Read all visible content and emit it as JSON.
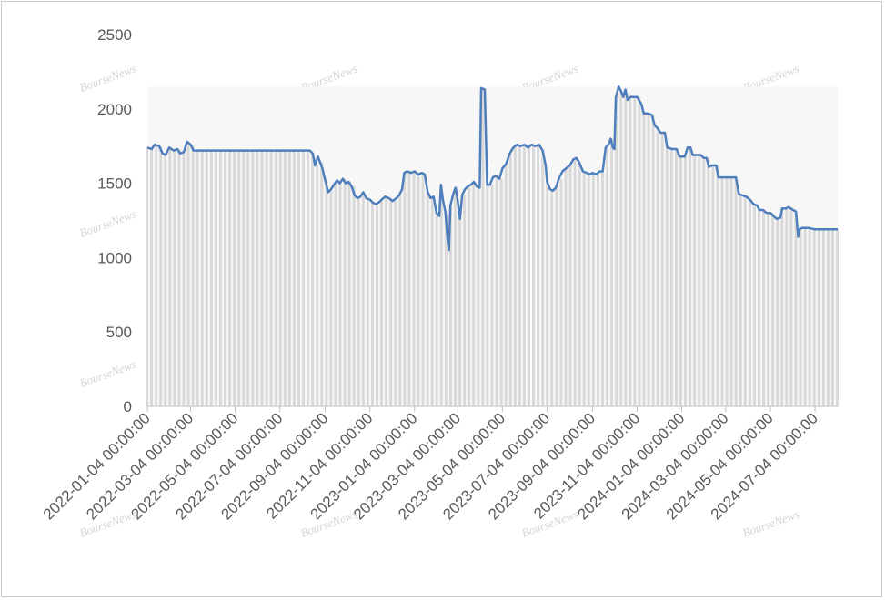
{
  "watermark": "BourseNews",
  "colors": {
    "line": "#4e7ebb",
    "bars": "#d9d9d9",
    "axis": "#bfbfbf",
    "text": "#595959"
  },
  "chart_data": {
    "type": "line",
    "title": "",
    "xlabel": "",
    "ylabel": "",
    "ylim": [
      0,
      2500
    ],
    "yticks": [
      0,
      500,
      1000,
      1500,
      2000,
      2500
    ],
    "xlim": [
      "2022-01-04",
      "2024-08-04"
    ],
    "xtick_labels": [
      "2022-01-04 00:00:00",
      "2022-03-04 00:00:00",
      "2022-05-04 00:00:00",
      "2022-07-04 00:00:00",
      "2022-09-04 00:00:00",
      "2022-11-04 00:00:00",
      "2023-01-04 00:00:00",
      "2023-03-04 00:00:00",
      "2023-05-04 00:00:00",
      "2023-07-04 00:00:00",
      "2023-09-04 00:00:00",
      "2023-11-04 00:00:00",
      "2024-01-04 00:00:00",
      "2024-03-04 00:00:00",
      "2024-05-04 00:00:00",
      "2024-07-04 00:00:00"
    ],
    "grid": false,
    "legend": "none",
    "series": [
      {
        "style": "line",
        "points": [
          [
            "2022-01-04",
            1740
          ],
          [
            "2022-01-10",
            1730
          ],
          [
            "2022-01-14",
            1760
          ],
          [
            "2022-01-20",
            1750
          ],
          [
            "2022-01-25",
            1700
          ],
          [
            "2022-01-29",
            1690
          ],
          [
            "2022-02-03",
            1740
          ],
          [
            "2022-02-09",
            1720
          ],
          [
            "2022-02-14",
            1730
          ],
          [
            "2022-02-18",
            1700
          ],
          [
            "2022-02-23",
            1710
          ],
          [
            "2022-02-27",
            1780
          ],
          [
            "2022-03-04",
            1760
          ],
          [
            "2022-03-08",
            1720
          ],
          [
            "2022-04-15",
            1720
          ],
          [
            "2022-06-01",
            1720
          ],
          [
            "2022-07-20",
            1720
          ],
          [
            "2022-08-14",
            1720
          ],
          [
            "2022-08-18",
            1700
          ],
          [
            "2022-08-21",
            1620
          ],
          [
            "2022-08-25",
            1680
          ],
          [
            "2022-08-28",
            1640
          ],
          [
            "2022-08-31",
            1600
          ],
          [
            "2022-09-04",
            1520
          ],
          [
            "2022-09-08",
            1440
          ],
          [
            "2022-09-12",
            1460
          ],
          [
            "2022-09-16",
            1490
          ],
          [
            "2022-09-20",
            1520
          ],
          [
            "2022-09-24",
            1500
          ],
          [
            "2022-09-28",
            1530
          ],
          [
            "2022-10-02",
            1500
          ],
          [
            "2022-10-06",
            1510
          ],
          [
            "2022-10-10",
            1480
          ],
          [
            "2022-10-14",
            1420
          ],
          [
            "2022-10-18",
            1400
          ],
          [
            "2022-10-22",
            1410
          ],
          [
            "2022-10-26",
            1440
          ],
          [
            "2022-10-30",
            1400
          ],
          [
            "2022-11-04",
            1390
          ],
          [
            "2022-11-08",
            1370
          ],
          [
            "2022-11-12",
            1360
          ],
          [
            "2022-11-16",
            1370
          ],
          [
            "2022-11-20",
            1390
          ],
          [
            "2022-11-25",
            1410
          ],
          [
            "2022-11-30",
            1400
          ],
          [
            "2022-12-05",
            1380
          ],
          [
            "2022-12-10",
            1400
          ],
          [
            "2022-12-14",
            1420
          ],
          [
            "2022-12-18",
            1460
          ],
          [
            "2022-12-21",
            1570
          ],
          [
            "2022-12-25",
            1580
          ],
          [
            "2022-12-30",
            1570
          ],
          [
            "2023-01-04",
            1580
          ],
          [
            "2023-01-09",
            1560
          ],
          [
            "2023-01-14",
            1570
          ],
          [
            "2023-01-18",
            1560
          ],
          [
            "2023-01-22",
            1440
          ],
          [
            "2023-01-26",
            1400
          ],
          [
            "2023-01-30",
            1410
          ],
          [
            "2023-02-03",
            1300
          ],
          [
            "2023-02-07",
            1280
          ],
          [
            "2023-02-09",
            1490
          ],
          [
            "2023-02-12",
            1380
          ],
          [
            "2023-02-15",
            1310
          ],
          [
            "2023-02-18",
            1130
          ],
          [
            "2023-02-20",
            1050
          ],
          [
            "2023-02-22",
            1350
          ],
          [
            "2023-02-26",
            1430
          ],
          [
            "2023-03-01",
            1470
          ],
          [
            "2023-03-04",
            1380
          ],
          [
            "2023-03-07",
            1260
          ],
          [
            "2023-03-10",
            1420
          ],
          [
            "2023-03-14",
            1460
          ],
          [
            "2023-03-18",
            1480
          ],
          [
            "2023-03-22",
            1490
          ],
          [
            "2023-03-26",
            1510
          ],
          [
            "2023-03-30",
            1480
          ],
          [
            "2023-04-03",
            1470
          ],
          [
            "2023-04-05",
            2140
          ],
          [
            "2023-04-10",
            2130
          ],
          [
            "2023-04-13",
            1490
          ],
          [
            "2023-04-17",
            1490
          ],
          [
            "2023-04-21",
            1540
          ],
          [
            "2023-04-25",
            1550
          ],
          [
            "2023-04-30",
            1530
          ],
          [
            "2023-05-04",
            1600
          ],
          [
            "2023-05-09",
            1630
          ],
          [
            "2023-05-14",
            1700
          ],
          [
            "2023-05-19",
            1740
          ],
          [
            "2023-05-24",
            1760
          ],
          [
            "2023-05-29",
            1750
          ],
          [
            "2023-06-03",
            1760
          ],
          [
            "2023-06-08",
            1740
          ],
          [
            "2023-06-13",
            1760
          ],
          [
            "2023-06-18",
            1750
          ],
          [
            "2023-06-23",
            1760
          ],
          [
            "2023-06-28",
            1720
          ],
          [
            "2023-07-02",
            1620
          ],
          [
            "2023-07-04",
            1510
          ],
          [
            "2023-07-08",
            1460
          ],
          [
            "2023-07-12",
            1450
          ],
          [
            "2023-07-16",
            1470
          ],
          [
            "2023-07-20",
            1530
          ],
          [
            "2023-07-25",
            1580
          ],
          [
            "2023-07-30",
            1600
          ],
          [
            "2023-08-04",
            1620
          ],
          [
            "2023-08-09",
            1660
          ],
          [
            "2023-08-13",
            1670
          ],
          [
            "2023-08-17",
            1640
          ],
          [
            "2023-08-22",
            1580
          ],
          [
            "2023-08-27",
            1570
          ],
          [
            "2023-09-01",
            1560
          ],
          [
            "2023-09-04",
            1570
          ],
          [
            "2023-09-09",
            1560
          ],
          [
            "2023-09-14",
            1580
          ],
          [
            "2023-09-18",
            1580
          ],
          [
            "2023-09-22",
            1740
          ],
          [
            "2023-09-26",
            1760
          ],
          [
            "2023-09-29",
            1800
          ],
          [
            "2023-10-02",
            1740
          ],
          [
            "2023-10-04",
            1730
          ],
          [
            "2023-10-06",
            2080
          ],
          [
            "2023-10-10",
            2150
          ],
          [
            "2023-10-13",
            2120
          ],
          [
            "2023-10-16",
            2080
          ],
          [
            "2023-10-19",
            2130
          ],
          [
            "2023-10-22",
            2060
          ],
          [
            "2023-10-26",
            2080
          ],
          [
            "2023-11-04",
            2080
          ],
          [
            "2023-11-10",
            2030
          ],
          [
            "2023-11-13",
            1970
          ],
          [
            "2023-11-18",
            1970
          ],
          [
            "2023-11-24",
            1960
          ],
          [
            "2023-11-28",
            1890
          ],
          [
            "2023-12-02",
            1870
          ],
          [
            "2023-12-06",
            1840
          ],
          [
            "2023-12-12",
            1840
          ],
          [
            "2023-12-15",
            1740
          ],
          [
            "2023-12-22",
            1730
          ],
          [
            "2023-12-28",
            1730
          ],
          [
            "2024-01-01",
            1680
          ],
          [
            "2024-01-08",
            1680
          ],
          [
            "2024-01-12",
            1740
          ],
          [
            "2024-01-16",
            1740
          ],
          [
            "2024-01-19",
            1690
          ],
          [
            "2024-01-30",
            1690
          ],
          [
            "2024-02-03",
            1670
          ],
          [
            "2024-02-07",
            1670
          ],
          [
            "2024-02-10",
            1610
          ],
          [
            "2024-02-14",
            1620
          ],
          [
            "2024-02-20",
            1620
          ],
          [
            "2024-02-23",
            1540
          ],
          [
            "2024-03-04",
            1540
          ],
          [
            "2024-03-12",
            1540
          ],
          [
            "2024-03-18",
            1540
          ],
          [
            "2024-03-22",
            1430
          ],
          [
            "2024-03-26",
            1420
          ],
          [
            "2024-04-01",
            1410
          ],
          [
            "2024-04-06",
            1390
          ],
          [
            "2024-04-11",
            1360
          ],
          [
            "2024-04-16",
            1350
          ],
          [
            "2024-04-19",
            1320
          ],
          [
            "2024-04-24",
            1320
          ],
          [
            "2024-04-29",
            1300
          ],
          [
            "2024-05-04",
            1300
          ],
          [
            "2024-05-08",
            1280
          ],
          [
            "2024-05-13",
            1260
          ],
          [
            "2024-05-18",
            1270
          ],
          [
            "2024-05-20",
            1330
          ],
          [
            "2024-05-25",
            1330
          ],
          [
            "2024-05-29",
            1340
          ],
          [
            "2024-06-04",
            1320
          ],
          [
            "2024-06-08",
            1310
          ],
          [
            "2024-06-11",
            1140
          ],
          [
            "2024-06-13",
            1190
          ],
          [
            "2024-06-16",
            1200
          ],
          [
            "2024-06-25",
            1200
          ],
          [
            "2024-07-04",
            1190
          ],
          [
            "2024-07-20",
            1190
          ],
          [
            "2024-08-04",
            1190
          ]
        ]
      }
    ]
  }
}
